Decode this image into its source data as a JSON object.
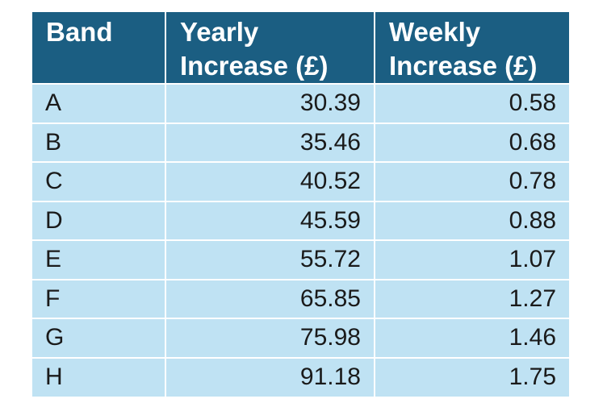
{
  "table": {
    "headers": {
      "band": "Band",
      "yearly_line1": "Yearly",
      "yearly_line2": "Increase (£)",
      "weekly_line1": "Weekly",
      "weekly_line2": "Increase (£)"
    },
    "rows": [
      {
        "band": "A",
        "yearly": "30.39",
        "weekly": "0.58"
      },
      {
        "band": "B",
        "yearly": "35.46",
        "weekly": "0.68"
      },
      {
        "band": "C",
        "yearly": "40.52",
        "weekly": "0.78"
      },
      {
        "band": "D",
        "yearly": "45.59",
        "weekly": "0.88"
      },
      {
        "band": "E",
        "yearly": "55.72",
        "weekly": "1.07"
      },
      {
        "band": "F",
        "yearly": "65.85",
        "weekly": "1.27"
      },
      {
        "band": "G",
        "yearly": "75.98",
        "weekly": "1.46"
      },
      {
        "band": "H",
        "yearly": "91.18",
        "weekly": "1.75"
      }
    ]
  },
  "colors": {
    "header_background": "#1b5e82",
    "header_text": "#ffffff",
    "row_background": "#bfe2f3",
    "row_text": "#1a1a1a",
    "grid_lines": "#ffffff"
  }
}
